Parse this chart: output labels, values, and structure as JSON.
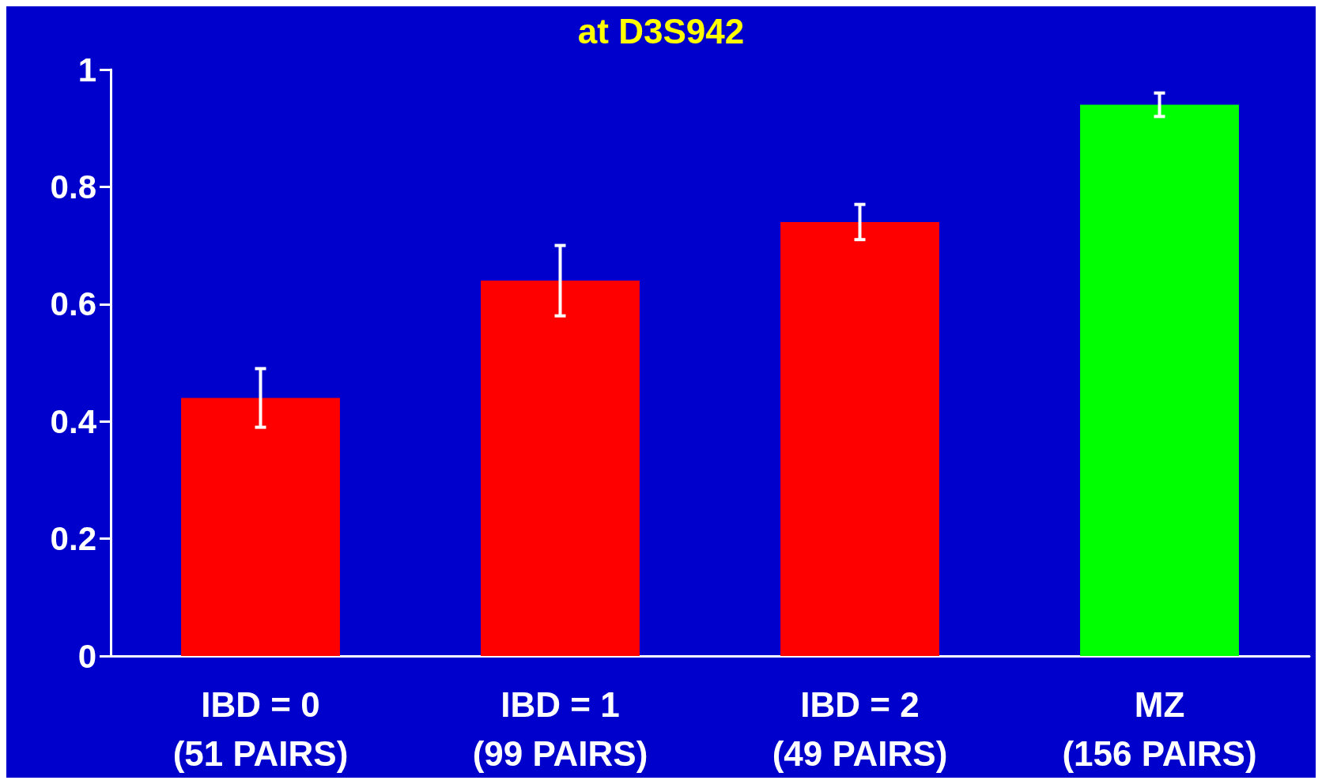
{
  "chart_data": {
    "type": "bar",
    "title": "at D3S942",
    "categories": [
      "IBD = 0\n(51 PAIRS)",
      "IBD = 1\n(99 PAIRS)",
      "IBD = 2\n(49 PAIRS)",
      "MZ\n(156 PAIRS)"
    ],
    "values": [
      0.44,
      0.64,
      0.74,
      0.94
    ],
    "colors": [
      "#ff0000",
      "#ff0000",
      "#ff0000",
      "#00ff00"
    ],
    "errors": [
      [
        0.39,
        0.49
      ],
      [
        0.58,
        0.7
      ],
      [
        0.71,
        0.77
      ],
      [
        0.92,
        0.96
      ]
    ],
    "ylim": [
      0,
      1
    ],
    "yticks": [
      0,
      {
        "value": 0.2,
        "label": "0.2"
      },
      {
        "value": 0.4,
        "label": "0.4"
      },
      {
        "value": 0.6,
        "label": "0.6"
      },
      {
        "value": 0.8,
        "label": "0.8"
      },
      1
    ],
    "grid": false
  }
}
